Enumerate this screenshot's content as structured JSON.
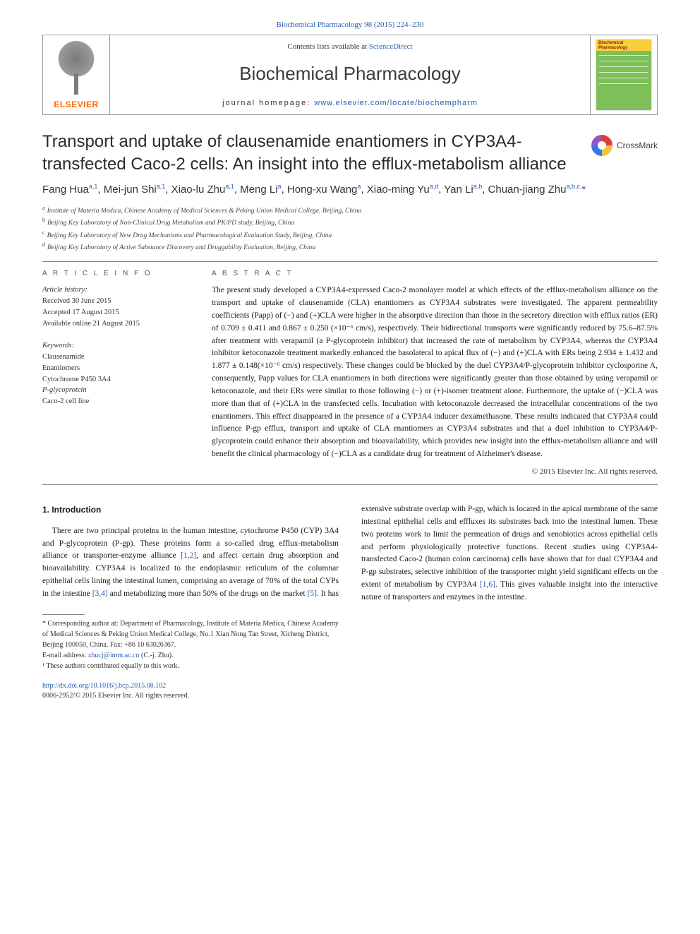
{
  "top": {
    "prefix_gray": "Biochemical Pharmacology 98 (2015) 224–230",
    "link": "Biochemical Pharmacology 98 (2015) 224–230"
  },
  "header": {
    "publisher": "ELSEVIER",
    "contents_prefix": "Contents lists available at ",
    "contents_link": "ScienceDirect",
    "journal": "Biochemical Pharmacology",
    "homepage_prefix": "journal homepage: ",
    "homepage_link": "www.elsevier.com/locate/biochempharm",
    "cover_title_line1": "Biochemical",
    "cover_title_line2": "Pharmacology"
  },
  "title": "Transport and uptake of clausenamide enantiomers in CYP3A4-transfected Caco-2 cells: An insight into the efflux-metabolism alliance",
  "crossmark": "CrossMark",
  "authors_html": "Fang Hua<sup>a,1</sup>, Mei-jun Shi<sup>a,1</sup>, Xiao-lu Zhu<sup>a,1</sup>, Meng Li<sup>a</sup>, Hong-xu Wang<sup>a</sup>, Xiao-ming Yu<sup>a,d</sup>, Yan Li<sup>a,b</sup>, Chuan-jiang Zhu<sup>a,b,c,</sup><span class=\"star\">*</span>",
  "affiliations": [
    {
      "sup": "a",
      "text": "Institute of Materia Medica, Chinese Academy of Medical Sciences & Peking Union Medical College, Beijing, China"
    },
    {
      "sup": "b",
      "text": "Beijing Key Laboratory of Non-Clinical Drug Metabolism and PK/PD study, Beijing, China"
    },
    {
      "sup": "c",
      "text": "Beijing Key Laboratory of New Drug Mechanisms and Pharmacological Evaluation Study, Beijing, China"
    },
    {
      "sup": "d",
      "text": "Beijing Key Laboratory of Active Substance Discovery and Druggability Evaluation, Beijing, China"
    }
  ],
  "article_info": {
    "label": "A R T I C L E  I N F O",
    "history_label": "Article history:",
    "received": "Received 30 June 2015",
    "accepted": "Accepted 17 August 2015",
    "online": "Available online 21 August 2015",
    "keywords_label": "Keywords:",
    "keywords": [
      "Clausenamide",
      "Enantiomers",
      "Cytochrome P450 3A4",
      "P-glycoprotein",
      "Caco-2 cell line"
    ]
  },
  "abstract": {
    "label": "A B S T R A C T",
    "text": "The present study developed a CYP3A4-expressed Caco-2 monolayer model at which effects of the efflux-metabolism alliance on the transport and uptake of clausenamide (CLA) enantiomers as CYP3A4 substrates were investigated. The apparent permeability coefficients (Papp) of (−) and (+)CLA were higher in the absorptive direction than those in the secretory direction with efflux ratios (ER) of 0.709 ± 0.411 and 0.867 ± 0.250 (×10⁻⁶ cm/s), respectively. Their bidirectional transports were significantly reduced by 75.6–87.5% after treatment with verapamil (a P-glycoprotein inhibitor) that increased the rate of metabolism by CYP3A4, whereas the CYP3A4 inhibitor ketoconazole treatment markedly enhanced the basolateral to apical flux of (−) and (+)CLA with ERs being 2.934 ± 1.432 and 1.877 ± 0.148(×10⁻⁶ cm/s) respectively. These changes could be blocked by the duel CYP3A4/P-glycoprotein inhibitor cyclosporine A, consequently, Papp values for CLA enantiomers in both directions were significantly greater than those obtained by using verapamil or ketoconazole, and their ERs were similar to those following (−) or (+)-isomer treatment alone. Furthermore, the uptake of (−)CLA was more than that of (+)CLA in the transfected cells. Incubation with ketoconazole decreased the intracellular concentrations of the two enantiomers. This effect disappeared in the presence of a CYP3A4 inducer dexamethasone. These results indicated that CYP3A4 could influence P-gp efflux, transport and uptake of CLA enantiomers as CYP3A4 substrates and that a duel inhibition to CYP3A4/P-glycoprotein could enhance their absorption and bioavailability, which provides new insight into the efflux-metabolism alliance and will benefit the clinical pharmacology of (−)CLA as a candidate drug for treatment of Alzheimer's disease.",
    "copyright": "© 2015 Elsevier Inc. All rights reserved."
  },
  "intro": {
    "heading": "1. Introduction",
    "para1_pre": "There are two principal proteins in the human intestine, cytochrome P450 (CYP) 3A4 and P-glycoprotein (P-gp). These proteins form a so-called drug efflux-metabolism alliance or transporter-enzyme alliance ",
    "para1_ref1": "[1,2]",
    "para1_post": ", and affect certain drug absorption and bioavailability. CYP3A4 is localized to the endoplasmic",
    "para2_pre": "reticulum of the columnar epithelial cells lining the intestinal lumen, comprising an average of 70% of the total CYPs in the intestine ",
    "para2_ref1": "[3,4]",
    "para2_mid1": " and metabolizing more than 50% of the drugs on the market ",
    "para2_ref2": "[5]",
    "para2_mid2": ". It has extensive substrate overlap with P-gp, which is located in the apical membrane of the same intestinal epithelial cells and effluxes its substrates back into the intestinal lumen. These two proteins work to limit the permeation of drugs and xenobiotics across epithelial cells and perform physiologically protective functions. Recent studies using CYP3A4-transfected Caco-2 (human colon carcinoma) cells have shown that for dual CYP3A4 and P-gp substrates, selective inhibition of the transporter might yield significant effects on the extent of metabolism by CYP3A4 ",
    "para2_ref3": "[1,6]",
    "para2_end": ". This gives valuable insight into the interactive nature of transporters and enzymes in the intestine."
  },
  "footnotes": {
    "corr": "* Corresponding author at: Department of Pharmacology, Institute of Materia Medica, Chinese Academy of Medical Sciences & Peking Union Medical College, No.1 Xian Nong Tan Street, Xicheng District, Beijing 100050, China. Fax: +86 10 63026367.",
    "email_label": "E-mail address: ",
    "email": "zhucj@imm.ac.cn",
    "email_suffix": " (C.-j. Zhu).",
    "equal": "¹ These authors contributed equally to this work."
  },
  "footer": {
    "doi": "http://dx.doi.org/10.1016/j.bcp.2015.08.102",
    "issn_line": "0006-2952/© 2015 Elsevier Inc. All rights reserved."
  },
  "colors": {
    "link": "#2a5db0",
    "elsevier_orange": "#ff6a00",
    "text": "#1a1a1a"
  }
}
